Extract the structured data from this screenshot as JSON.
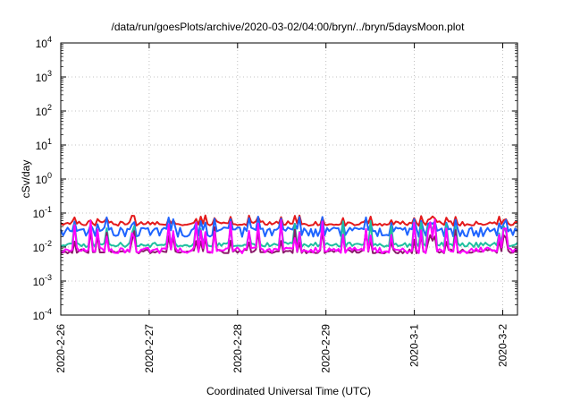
{
  "chart_data": {
    "type": "line",
    "title": "/data/run/goesPlots/archive/2020-03-02/04:00/bryn/../bryn/5daysMoon.plot",
    "xlabel": "Coordinated Universal Time (UTC)",
    "ylabel": "cSv/day",
    "yscale": "log",
    "ylim": [
      0.0001,
      10000
    ],
    "y_ticks": [
      {
        "base": "10",
        "exp": "-4",
        "value": 0.0001
      },
      {
        "base": "10",
        "exp": "-3",
        "value": 0.001
      },
      {
        "base": "10",
        "exp": "-2",
        "value": 0.01
      },
      {
        "base": "10",
        "exp": "-1",
        "value": 0.1
      },
      {
        "base": "10",
        "exp": "0",
        "value": 1
      },
      {
        "base": "10",
        "exp": "1",
        "value": 10
      },
      {
        "base": "10",
        "exp": "2",
        "value": 100
      },
      {
        "base": "10",
        "exp": "3",
        "value": 1000
      },
      {
        "base": "10",
        "exp": "4",
        "value": 10000
      }
    ],
    "xlim": [
      "2020-02-26 00:00",
      "2020-03-02 04:00"
    ],
    "x_ticks": [
      "2020-2-26",
      "2020-2-27",
      "2020-2-28",
      "2020-2-29",
      "2020-3-1",
      "2020-3-2"
    ],
    "grid": true,
    "legend": "none",
    "series": [
      {
        "color": "#e41a1c",
        "base": 0.05,
        "spike_max": 0.085,
        "dip_min": 0.042
      },
      {
        "color": "#1e64ff",
        "base": 0.033,
        "spike_max": 0.08,
        "dip_min": 0.02
      },
      {
        "color": "#20c0a0",
        "base": 0.012,
        "spike_max": 0.06,
        "dip_min": 0.01
      },
      {
        "color": "#8b1a6b",
        "base": 0.0075,
        "spike_max": 0.04,
        "dip_min": 0.0065
      },
      {
        "color": "#ff00ff",
        "base": 0.0085,
        "spike_max": 0.075,
        "dip_min": 0.0065
      }
    ]
  }
}
